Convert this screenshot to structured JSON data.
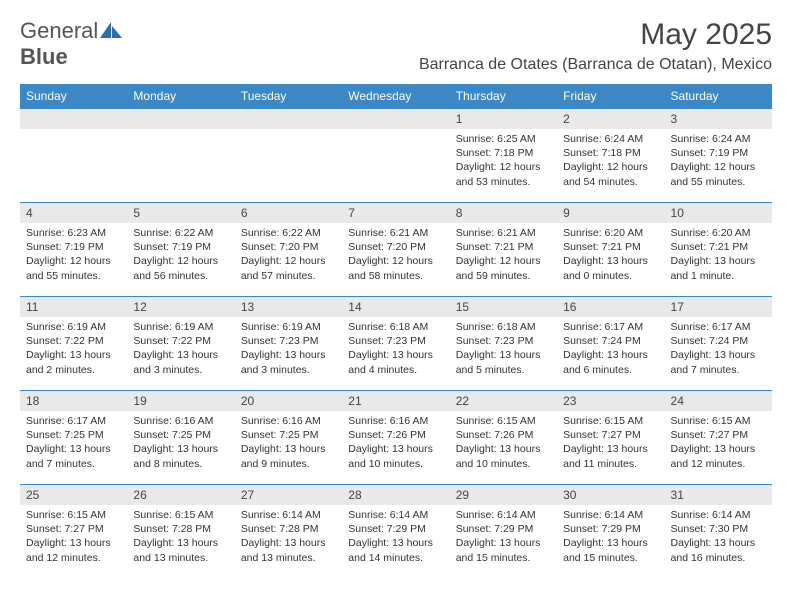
{
  "brand": {
    "part1": "General",
    "part2": "Blue"
  },
  "title": "May 2025",
  "location": "Barranca de Otates (Barranca de Otatan), Mexico",
  "styling": {
    "header_bg": "#3b88c4",
    "header_fg": "#ffffff",
    "daynum_bg": "#e9e9e9",
    "daynum_border": "#3b88c4",
    "body_bg": "#ffffff",
    "text_color": "#333333",
    "title_fontsize": 30,
    "location_fontsize": 16,
    "dayheader_fontsize": 12,
    "daydata_fontsize": 10.5
  },
  "day_headers": [
    "Sunday",
    "Monday",
    "Tuesday",
    "Wednesday",
    "Thursday",
    "Friday",
    "Saturday"
  ],
  "weeks": [
    [
      null,
      null,
      null,
      null,
      {
        "n": "1",
        "sr": "Sunrise: 6:25 AM",
        "ss": "Sunset: 7:18 PM",
        "dl": "Daylight: 12 hours and 53 minutes."
      },
      {
        "n": "2",
        "sr": "Sunrise: 6:24 AM",
        "ss": "Sunset: 7:18 PM",
        "dl": "Daylight: 12 hours and 54 minutes."
      },
      {
        "n": "3",
        "sr": "Sunrise: 6:24 AM",
        "ss": "Sunset: 7:19 PM",
        "dl": "Daylight: 12 hours and 55 minutes."
      }
    ],
    [
      {
        "n": "4",
        "sr": "Sunrise: 6:23 AM",
        "ss": "Sunset: 7:19 PM",
        "dl": "Daylight: 12 hours and 55 minutes."
      },
      {
        "n": "5",
        "sr": "Sunrise: 6:22 AM",
        "ss": "Sunset: 7:19 PM",
        "dl": "Daylight: 12 hours and 56 minutes."
      },
      {
        "n": "6",
        "sr": "Sunrise: 6:22 AM",
        "ss": "Sunset: 7:20 PM",
        "dl": "Daylight: 12 hours and 57 minutes."
      },
      {
        "n": "7",
        "sr": "Sunrise: 6:21 AM",
        "ss": "Sunset: 7:20 PM",
        "dl": "Daylight: 12 hours and 58 minutes."
      },
      {
        "n": "8",
        "sr": "Sunrise: 6:21 AM",
        "ss": "Sunset: 7:21 PM",
        "dl": "Daylight: 12 hours and 59 minutes."
      },
      {
        "n": "9",
        "sr": "Sunrise: 6:20 AM",
        "ss": "Sunset: 7:21 PM",
        "dl": "Daylight: 13 hours and 0 minutes."
      },
      {
        "n": "10",
        "sr": "Sunrise: 6:20 AM",
        "ss": "Sunset: 7:21 PM",
        "dl": "Daylight: 13 hours and 1 minute."
      }
    ],
    [
      {
        "n": "11",
        "sr": "Sunrise: 6:19 AM",
        "ss": "Sunset: 7:22 PM",
        "dl": "Daylight: 13 hours and 2 minutes."
      },
      {
        "n": "12",
        "sr": "Sunrise: 6:19 AM",
        "ss": "Sunset: 7:22 PM",
        "dl": "Daylight: 13 hours and 3 minutes."
      },
      {
        "n": "13",
        "sr": "Sunrise: 6:19 AM",
        "ss": "Sunset: 7:23 PM",
        "dl": "Daylight: 13 hours and 3 minutes."
      },
      {
        "n": "14",
        "sr": "Sunrise: 6:18 AM",
        "ss": "Sunset: 7:23 PM",
        "dl": "Daylight: 13 hours and 4 minutes."
      },
      {
        "n": "15",
        "sr": "Sunrise: 6:18 AM",
        "ss": "Sunset: 7:23 PM",
        "dl": "Daylight: 13 hours and 5 minutes."
      },
      {
        "n": "16",
        "sr": "Sunrise: 6:17 AM",
        "ss": "Sunset: 7:24 PM",
        "dl": "Daylight: 13 hours and 6 minutes."
      },
      {
        "n": "17",
        "sr": "Sunrise: 6:17 AM",
        "ss": "Sunset: 7:24 PM",
        "dl": "Daylight: 13 hours and 7 minutes."
      }
    ],
    [
      {
        "n": "18",
        "sr": "Sunrise: 6:17 AM",
        "ss": "Sunset: 7:25 PM",
        "dl": "Daylight: 13 hours and 7 minutes."
      },
      {
        "n": "19",
        "sr": "Sunrise: 6:16 AM",
        "ss": "Sunset: 7:25 PM",
        "dl": "Daylight: 13 hours and 8 minutes."
      },
      {
        "n": "20",
        "sr": "Sunrise: 6:16 AM",
        "ss": "Sunset: 7:25 PM",
        "dl": "Daylight: 13 hours and 9 minutes."
      },
      {
        "n": "21",
        "sr": "Sunrise: 6:16 AM",
        "ss": "Sunset: 7:26 PM",
        "dl": "Daylight: 13 hours and 10 minutes."
      },
      {
        "n": "22",
        "sr": "Sunrise: 6:15 AM",
        "ss": "Sunset: 7:26 PM",
        "dl": "Daylight: 13 hours and 10 minutes."
      },
      {
        "n": "23",
        "sr": "Sunrise: 6:15 AM",
        "ss": "Sunset: 7:27 PM",
        "dl": "Daylight: 13 hours and 11 minutes."
      },
      {
        "n": "24",
        "sr": "Sunrise: 6:15 AM",
        "ss": "Sunset: 7:27 PM",
        "dl": "Daylight: 13 hours and 12 minutes."
      }
    ],
    [
      {
        "n": "25",
        "sr": "Sunrise: 6:15 AM",
        "ss": "Sunset: 7:27 PM",
        "dl": "Daylight: 13 hours and 12 minutes."
      },
      {
        "n": "26",
        "sr": "Sunrise: 6:15 AM",
        "ss": "Sunset: 7:28 PM",
        "dl": "Daylight: 13 hours and 13 minutes."
      },
      {
        "n": "27",
        "sr": "Sunrise: 6:14 AM",
        "ss": "Sunset: 7:28 PM",
        "dl": "Daylight: 13 hours and 13 minutes."
      },
      {
        "n": "28",
        "sr": "Sunrise: 6:14 AM",
        "ss": "Sunset: 7:29 PM",
        "dl": "Daylight: 13 hours and 14 minutes."
      },
      {
        "n": "29",
        "sr": "Sunrise: 6:14 AM",
        "ss": "Sunset: 7:29 PM",
        "dl": "Daylight: 13 hours and 15 minutes."
      },
      {
        "n": "30",
        "sr": "Sunrise: 6:14 AM",
        "ss": "Sunset: 7:29 PM",
        "dl": "Daylight: 13 hours and 15 minutes."
      },
      {
        "n": "31",
        "sr": "Sunrise: 6:14 AM",
        "ss": "Sunset: 7:30 PM",
        "dl": "Daylight: 13 hours and 16 minutes."
      }
    ]
  ]
}
